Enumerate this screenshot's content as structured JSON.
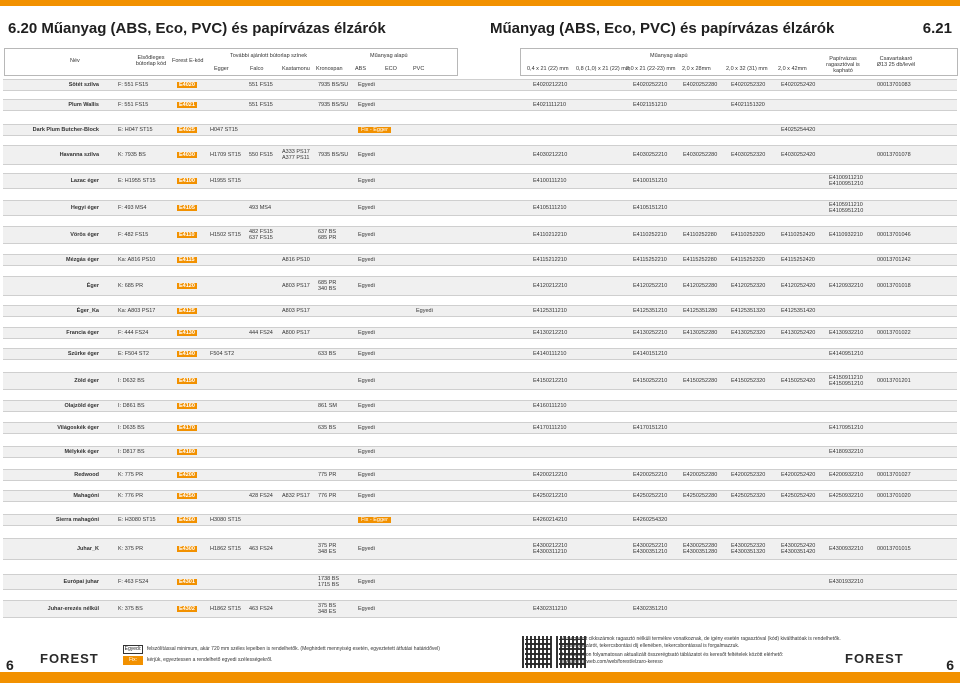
{
  "page": {
    "title_left": "Műanyag (ABS, Eco, PVC) és papírvázas élzárók",
    "num_left": "6.20",
    "title_mid": "Műanyag (ABS, Eco, PVC) és papírvázas élzárók",
    "num_right": "6.21",
    "page_left": "6",
    "page_right": "6",
    "accent": "#f29100"
  },
  "header": {
    "nev": "Név",
    "elsodleges": "Elsődleges bútorlap kód",
    "forest_e": "Forest E-kód",
    "tovabbi": "További ajánlott bútorlap színek",
    "egger": "Egger",
    "falco": "Falco",
    "kastamonu": "Kastamonu",
    "kronospan": "Kronospan",
    "muanyag": "Műanyag alapú",
    "abs": "ABS",
    "eco": "ECO",
    "pvc": "PVC",
    "muanyag2": "Műanyag alapú",
    "s1": "0,4 x 21 (22) mm",
    "s2": "0,8 (1,0) x 21 (22) mm",
    "s3": "2,0 x 21 (22-23) mm",
    "s4": "2,0 x 28mm",
    "s5": "2,0 x 32 (31) mm",
    "s6": "2,0 x 42mm",
    "papir": "Papírvázas ragasztóval is kapható",
    "csavar": "Csavartakaró Ø13 25 db/levél"
  },
  "rows": [
    {
      "name": "Sötét szilva",
      "prim": "F: 551 FS15",
      "e": "E4020",
      "egger": "",
      "falco": "551 FS15",
      "kast": "",
      "kron": "7935 BS/SU",
      "abs": "Egyedi",
      "eco": "",
      "pvc": "",
      "c1": "E4020212210",
      "c2": "",
      "c3": "E4020252210",
      "c4": "E4020252280",
      "c5": "E4020252320",
      "c6": "E4020252420",
      "papir": "",
      "csav": "00013701083"
    },
    {
      "name": "Plum Wallis",
      "prim": "F: 551 FS15",
      "e": "E4021",
      "egger": "",
      "falco": "551 FS15",
      "kast": "",
      "kron": "7935 BS/SU",
      "abs": "Egyedi",
      "eco": "",
      "pvc": "",
      "c1": "E4021111210",
      "c2": "",
      "c3": "E4021151210",
      "c4": "",
      "c5": "E4021151320",
      "c6": "",
      "papir": "",
      "csav": ""
    },
    {
      "name": "Dark Plum Butcher-Block",
      "prim": "E: H047 ST15",
      "e": "E4025",
      "egger": "H047 ST15",
      "falco": "",
      "kast": "",
      "kron": "",
      "abs": "Fix - Egger",
      "eco": "",
      "pvc": "",
      "c1": "",
      "c2": "",
      "c3": "",
      "c4": "",
      "c5": "",
      "c6": "E4025254420",
      "papir": "",
      "csav": ""
    },
    {
      "name": "Havanna szilva",
      "prim": "K: 7935 BS",
      "e": "E4030",
      "egger": "H1709 ST15",
      "falco": "550 FS15",
      "kast": "A333 PS17 / A377 PS11",
      "kron": "7935 BS/SU",
      "abs": "Egyedi",
      "eco": "",
      "pvc": "",
      "c1": "E4030212210",
      "c2": "",
      "c3": "E4030252210",
      "c4": "E4030252280",
      "c5": "E4030252320",
      "c6": "E4030252420",
      "papir": "",
      "csav": "00013701078"
    },
    {
      "name": "Lazac éger",
      "prim": "E: H1955 ST15",
      "e": "E4100",
      "egger": "H1955 ST15",
      "falco": "",
      "kast": "",
      "kron": "",
      "abs": "Egyedi",
      "eco": "",
      "pvc": "",
      "c1": "E4100111210",
      "c2": "",
      "c3": "E4100151210",
      "c4": "",
      "c5": "",
      "c6": "",
      "papir": "E4100911210 / E4100951210",
      "csav": ""
    },
    {
      "name": "Hegyi éger",
      "prim": "F: 493 MS4",
      "e": "E4105",
      "egger": "",
      "falco": "493 MS4",
      "kast": "",
      "kron": "",
      "abs": "Egyedi",
      "eco": "",
      "pvc": "",
      "c1": "E4105111210",
      "c2": "",
      "c3": "E4105151210",
      "c4": "",
      "c5": "",
      "c6": "",
      "papir": "E4105911210 / E4105951210",
      "csav": ""
    },
    {
      "name": "Vörös éger",
      "prim": "F: 482 FS15",
      "e": "E4110",
      "egger": "H1502 ST15",
      "falco": "482 FS15 / 637 FS15",
      "kast": "",
      "kron": "637 BS / 685 PR",
      "abs": "Egyedi",
      "eco": "",
      "pvc": "",
      "c1": "E4110212210",
      "c2": "",
      "c3": "E4110252210",
      "c4": "E4110252280",
      "c5": "E4110252320",
      "c6": "E4110252420",
      "papir": "E4110932210",
      "csav": "00013701046"
    },
    {
      "name": "Mézgás éger",
      "prim": "Ka: A816 PS10",
      "e": "E4115",
      "egger": "",
      "falco": "",
      "kast": "A816 PS10",
      "kron": "",
      "abs": "Egyedi",
      "eco": "",
      "pvc": "",
      "c1": "E4115212210",
      "c2": "",
      "c3": "E4115252210",
      "c4": "E4115252280",
      "c5": "E4115252320",
      "c6": "E4115252420",
      "papir": "",
      "csav": "00013701242"
    },
    {
      "name": "Éger",
      "prim": "K: 685 PR",
      "e": "E4120",
      "egger": "",
      "falco": "",
      "kast": "A803 PS17",
      "kron": "685 PR / 340 BS",
      "abs": "Egyedi",
      "eco": "",
      "pvc": "",
      "c1": "E4120212210",
      "c2": "",
      "c3": "E4120252210",
      "c4": "E4120252280",
      "c5": "E4120252320",
      "c6": "E4120252420",
      "papir": "E4120932210",
      "csav": "00013701018"
    },
    {
      "name": "Éger_Ka",
      "prim": "Ka: A803 PS17",
      "e": "E4125",
      "egger": "",
      "falco": "",
      "kast": "A803 PS17",
      "kron": "",
      "abs": "",
      "eco": "",
      "pvc": "Egyedi",
      "c1": "E4125311210",
      "c2": "",
      "c3": "E4125351210",
      "c4": "E4125351280",
      "c5": "E4125351320",
      "c6": "E4125351420",
      "papir": "",
      "csav": ""
    },
    {
      "name": "Francia éger",
      "prim": "F: 444 FS24",
      "e": "E4130",
      "egger": "",
      "falco": "444 FS24",
      "kast": "A800 PS17",
      "kron": "",
      "abs": "Egyedi",
      "eco": "",
      "pvc": "",
      "c1": "E4130212210",
      "c2": "",
      "c3": "E4130252210",
      "c4": "E4130252280",
      "c5": "E4130252320",
      "c6": "E4130252420",
      "papir": "E4130932210",
      "csav": "00013701022"
    },
    {
      "name": "Szürke éger",
      "prim": "E: F504 ST2",
      "e": "E4140",
      "egger": "F504 ST2",
      "falco": "",
      "kast": "",
      "kron": "633 BS",
      "abs": "Egyedi",
      "eco": "",
      "pvc": "",
      "c1": "E4140111210",
      "c2": "",
      "c3": "E4140151210",
      "c4": "",
      "c5": "",
      "c6": "",
      "papir": "E4140951210",
      "csav": ""
    },
    {
      "name": "Zöld éger",
      "prim": "I: D632 BS",
      "e": "E4150",
      "egger": "",
      "falco": "",
      "kast": "",
      "kron": "",
      "abs": "Egyedi",
      "eco": "",
      "pvc": "",
      "c1": "E4150212210",
      "c2": "",
      "c3": "E4150252210",
      "c4": "E4150252280",
      "c5": "E4150252320",
      "c6": "E4150252420",
      "papir": "E4150911210 / E4150951210",
      "csav": "00013701201"
    },
    {
      "name": "Olajzöld éger",
      "prim": "I: D861 BS",
      "e": "E4160",
      "egger": "",
      "falco": "",
      "kast": "",
      "kron": "861 SM",
      "abs": "Egyedi",
      "eco": "",
      "pvc": "",
      "c1": "E4160111210",
      "c2": "",
      "c3": "",
      "c4": "",
      "c5": "",
      "c6": "",
      "papir": "",
      "csav": ""
    },
    {
      "name": "Világoskék éger",
      "prim": "I: D635 BS",
      "e": "E4170",
      "egger": "",
      "falco": "",
      "kast": "",
      "kron": "635 BS",
      "abs": "Egyedi",
      "eco": "",
      "pvc": "",
      "c1": "E4170111210",
      "c2": "",
      "c3": "E4170151210",
      "c4": "",
      "c5": "",
      "c6": "",
      "papir": "E4170951210",
      "csav": ""
    },
    {
      "name": "Mélykék éger",
      "prim": "I: D817 BS",
      "e": "E4180",
      "egger": "",
      "falco": "",
      "kast": "",
      "kron": "",
      "abs": "Egyedi",
      "eco": "",
      "pvc": "",
      "c1": "",
      "c2": "",
      "c3": "",
      "c4": "",
      "c5": "",
      "c6": "",
      "papir": "E4180932210",
      "csav": ""
    },
    {
      "name": "Redwood",
      "prim": "K: 775 PR",
      "e": "E4200",
      "egger": "",
      "falco": "",
      "kast": "",
      "kron": "775 PR",
      "abs": "Egyedi",
      "eco": "",
      "pvc": "",
      "c1": "E4200212210",
      "c2": "",
      "c3": "E4200252210",
      "c4": "E4200252280",
      "c5": "E4200252320",
      "c6": "E4200252420",
      "papir": "E4200932210",
      "csav": "00013701027"
    },
    {
      "name": "Mahagóni",
      "prim": "K: 776 PR",
      "e": "E4250",
      "egger": "",
      "falco": "428 FS24",
      "kast": "A832 PS17",
      "kron": "776 PR",
      "abs": "Egyedi",
      "eco": "",
      "pvc": "",
      "c1": "E4250212210",
      "c2": "",
      "c3": "E4250252210",
      "c4": "E4250252280",
      "c5": "E4250252320",
      "c6": "E4250252420",
      "papir": "E4250932210",
      "csav": "00013701020"
    },
    {
      "name": "Sierra mahagóni",
      "prim": "E: H3080 ST15",
      "e": "E4260",
      "egger": "H3080 ST15",
      "falco": "",
      "kast": "",
      "kron": "",
      "abs": "Fix - Egger",
      "eco": "",
      "pvc": "",
      "c1": "E4260214210",
      "c2": "",
      "c3": "E4260254320",
      "c4": "",
      "c5": "",
      "c6": "",
      "papir": "",
      "csav": ""
    },
    {
      "name": "Juhar_K",
      "prim": "K: 375 PR",
      "e": "E4300",
      "egger": "H1862 ST15",
      "falco": "463 FS24",
      "kast": "",
      "kron": "375 PR / 348 ES",
      "abs": "Egyedi",
      "eco": "",
      "pvc": "",
      "c1": "E4300212210 / E4300311210",
      "c2": "",
      "c3": "E4300252210 / E4300351210",
      "c4": "E4300252280 / E4300351280",
      "c5": "E4300252320 / E4300351320",
      "c6": "E4300252420 / E4300351420",
      "papir": "E4300932210",
      "csav": "00013701015"
    },
    {
      "name": "Európai juhar",
      "prim": "F: 463 FS24",
      "e": "E4301",
      "egger": "",
      "falco": "",
      "kast": "",
      "kron": "1738 BS / 1715 BS",
      "abs": "Egyedi",
      "eco": "",
      "pvc": "",
      "c1": "",
      "c2": "",
      "c3": "",
      "c4": "",
      "c5": "",
      "c6": "",
      "papir": "E4301932210",
      "csav": ""
    },
    {
      "name": "Juhar-erezés nélkül",
      "prim": "K: 375 BS",
      "e": "E4302",
      "egger": "H1862 ST15",
      "falco": "463 FS24",
      "kast": "",
      "kron": "375 BS / 348 ES",
      "abs": "Egyedi",
      "eco": "",
      "pvc": "",
      "c1": "E4302311210",
      "c2": "",
      "c3": "E4302351210",
      "c4": "",
      "c5": "",
      "c6": "",
      "papir": "",
      "csav": ""
    }
  ],
  "footer": {
    "logo": "FOREST",
    "egyedi_label": "Egyedi:",
    "egyedi_text": "felszólítással minimum, akár 720 mm széles lepelben is rendelhetők. (Meghirdett mennyiség esetén, egyeztetett átfutási határidővel)",
    "fix_label": "Fix:",
    "fix_text": "kérjük, egyeztessen a rendelhető egyedi szélességekről.",
    "note1": "A megadott cikkszámok ragasztó nélküli termékre vonatkoznak, de igény esetén ragasztóval (kód) kiválthatóak is rendelhetők.",
    "note2": "Bármely élzárót, tekercsbontási díj ellenében, tekercsbontással is forgalmazzuk.",
    "note3": "Honlapunkon folyamatosan aktualizált összerégtsató táblázatot és keresőt feltételek között elérhető:",
    "note4": "www.forestweb.com/web/forest/elzaro-kereso"
  }
}
